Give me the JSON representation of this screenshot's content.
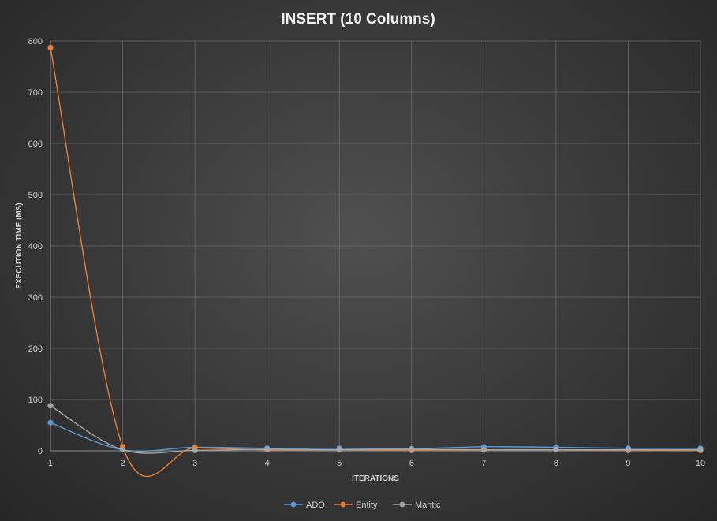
{
  "chart_data": {
    "type": "line",
    "title": "INSERT  (10 Columns)",
    "xlabel": "ITERATIONS",
    "ylabel": "EXECUTION TIME  (MS)",
    "x": [
      1,
      2,
      3,
      4,
      5,
      6,
      7,
      8,
      9,
      10
    ],
    "ylim": [
      0,
      800
    ],
    "yticks": [
      0,
      100,
      200,
      300,
      400,
      500,
      600,
      700,
      800
    ],
    "grid": true,
    "legend_position": "bottom",
    "smooth": true,
    "series": [
      {
        "name": "ADO",
        "color": "#5b9bd5",
        "values": [
          55,
          2,
          7,
          5,
          5,
          4,
          8,
          7,
          5,
          5
        ]
      },
      {
        "name": "Entity",
        "color": "#ed7d31",
        "values": [
          787,
          8,
          6,
          2,
          2,
          1,
          2,
          2,
          1,
          1
        ]
      },
      {
        "name": "Mantic",
        "color": "#a5a5a5",
        "values": [
          88,
          2,
          1,
          3,
          2,
          3,
          2,
          2,
          2,
          2
        ]
      }
    ]
  }
}
